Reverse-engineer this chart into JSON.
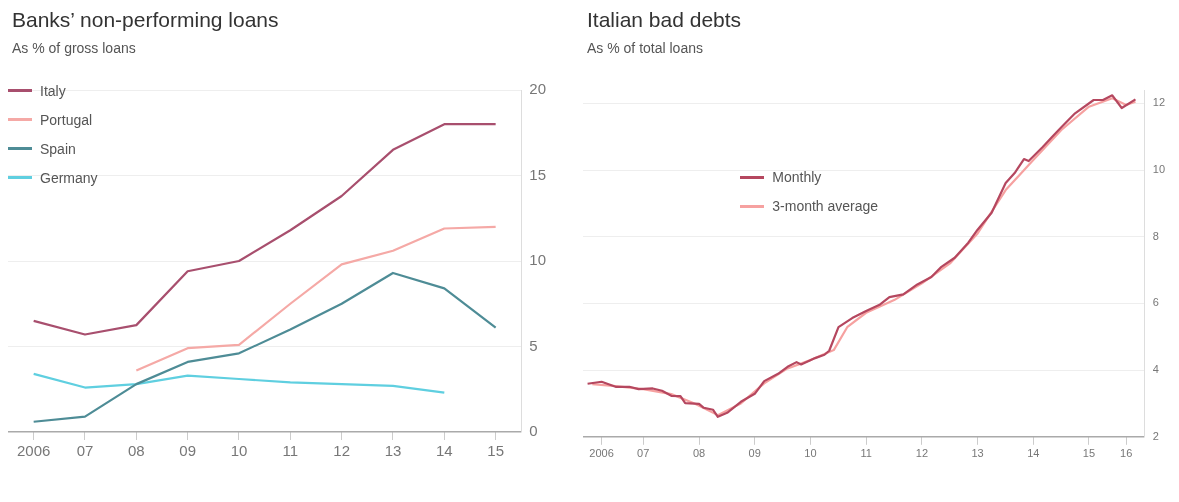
{
  "chart_data": [
    {
      "type": "line",
      "title": "Banks’ non-performing loans",
      "subtitle": "As % of gross loans",
      "categories": [
        "2006",
        "07",
        "08",
        "09",
        "10",
        "11",
        "12",
        "13",
        "14",
        "15"
      ],
      "series": [
        {
          "name": "Italy",
          "color": "#a84f6e",
          "values": [
            6.5,
            5.7,
            6.25,
            9.4,
            10.0,
            11.8,
            13.8,
            16.5,
            18.0,
            18.0
          ]
        },
        {
          "name": "Portugal",
          "color": "#f5a9a6",
          "values": [
            null,
            null,
            3.6,
            4.9,
            5.1,
            7.5,
            9.8,
            10.6,
            11.9,
            12.0
          ]
        },
        {
          "name": "Spain",
          "color": "#4e8c96",
          "values": [
            0.6,
            0.9,
            2.8,
            4.1,
            4.6,
            6.0,
            7.5,
            9.3,
            8.4,
            6.1
          ]
        },
        {
          "name": "Germany",
          "color": "#5fcfe0",
          "values": [
            3.4,
            2.6,
            2.8,
            3.3,
            3.1,
            2.9,
            2.8,
            2.7,
            2.3,
            null
          ]
        }
      ],
      "ylim": [
        0,
        20
      ],
      "yticks": [
        0,
        5,
        10,
        15,
        20
      ],
      "grid": "y",
      "legend": "top left",
      "marker": "none",
      "line_style": "solid"
    },
    {
      "type": "line",
      "title": "Italian bad debts",
      "subtitle": "As % of total loans",
      "series": [
        {
          "name": "Monthly",
          "color": "#b5475f",
          "x": [
            "2006-07",
            "2006-10",
            "2007-01",
            "2007-04",
            "2007-06",
            "2007-09",
            "2007-11",
            "2008-01",
            "2008-03",
            "2008-04",
            "2008-07",
            "2008-08",
            "2008-10",
            "2008-11",
            "2009-01",
            "2009-04",
            "2009-07",
            "2009-09",
            "2009-12",
            "2010-02",
            "2010-04",
            "2010-05",
            "2010-08",
            "2010-10",
            "2010-11",
            "2011-01",
            "2011-04",
            "2011-07",
            "2011-10",
            "2011-12",
            "2012-03",
            "2012-06",
            "2012-09",
            "2012-11",
            "2013-02",
            "2013-05",
            "2013-07",
            "2013-10",
            "2014-01",
            "2014-03",
            "2014-05",
            "2014-06",
            "2014-09",
            "2014-11",
            "2015-01",
            "2015-04",
            "2015-08",
            "2015-10",
            "2015-12",
            "2016-02",
            "2016-05"
          ],
          "values": [
            3.59,
            3.65,
            3.5,
            3.5,
            3.43,
            3.45,
            3.38,
            3.23,
            3.22,
            3.01,
            2.99,
            2.87,
            2.81,
            2.6,
            2.72,
            3.05,
            3.29,
            3.67,
            3.89,
            4.1,
            4.24,
            4.17,
            4.36,
            4.46,
            4.58,
            5.29,
            5.56,
            5.77,
            5.97,
            6.19,
            6.27,
            6.57,
            6.79,
            7.08,
            7.37,
            7.82,
            8.21,
            8.72,
            9.61,
            9.91,
            10.33,
            10.27,
            10.69,
            10.99,
            11.28,
            11.7,
            12.1,
            12.1,
            12.24,
            11.86,
            12.12
          ]
        },
        {
          "name": "3-month average",
          "color": "#f6a1a0",
          "x": [
            "2006-08",
            "2007-01",
            "2007-07",
            "2008-01",
            "2008-06",
            "2008-11",
            "2009-04",
            "2009-09",
            "2010-02",
            "2010-07",
            "2010-12",
            "2011-03",
            "2011-07",
            "2012-01",
            "2012-07",
            "2013-01",
            "2013-07",
            "2014-01",
            "2014-07",
            "2015-01",
            "2015-07",
            "2015-12",
            "2016-03",
            "2016-05"
          ],
          "values": [
            3.58,
            3.52,
            3.43,
            3.28,
            3.0,
            2.65,
            3.0,
            3.6,
            4.05,
            4.3,
            4.6,
            5.3,
            5.72,
            6.1,
            6.6,
            7.2,
            8.1,
            9.4,
            10.3,
            11.2,
            11.9,
            12.15,
            11.95,
            12.05
          ]
        }
      ],
      "xlim": [
        "2006-06",
        "2016-07"
      ],
      "xticks": [
        {
          "value": "2006-10",
          "label": "2006"
        },
        {
          "value": "2007-07",
          "label": "07"
        },
        {
          "value": "2008-07",
          "label": "08"
        },
        {
          "value": "2009-07",
          "label": "09"
        },
        {
          "value": "2010-07",
          "label": "10"
        },
        {
          "value": "2011-07",
          "label": "11"
        },
        {
          "value": "2012-07",
          "label": "12"
        },
        {
          "value": "2013-07",
          "label": "13"
        },
        {
          "value": "2014-07",
          "label": "14"
        },
        {
          "value": "2015-07",
          "label": "15"
        },
        {
          "value": "2016-03",
          "label": "16"
        }
      ],
      "ylim": [
        2,
        12.4
      ],
      "yticks": [
        2,
        4,
        6,
        8,
        10,
        12
      ],
      "grid": "y",
      "legend": "top left",
      "marker": "none",
      "line_style": "solid"
    }
  ]
}
